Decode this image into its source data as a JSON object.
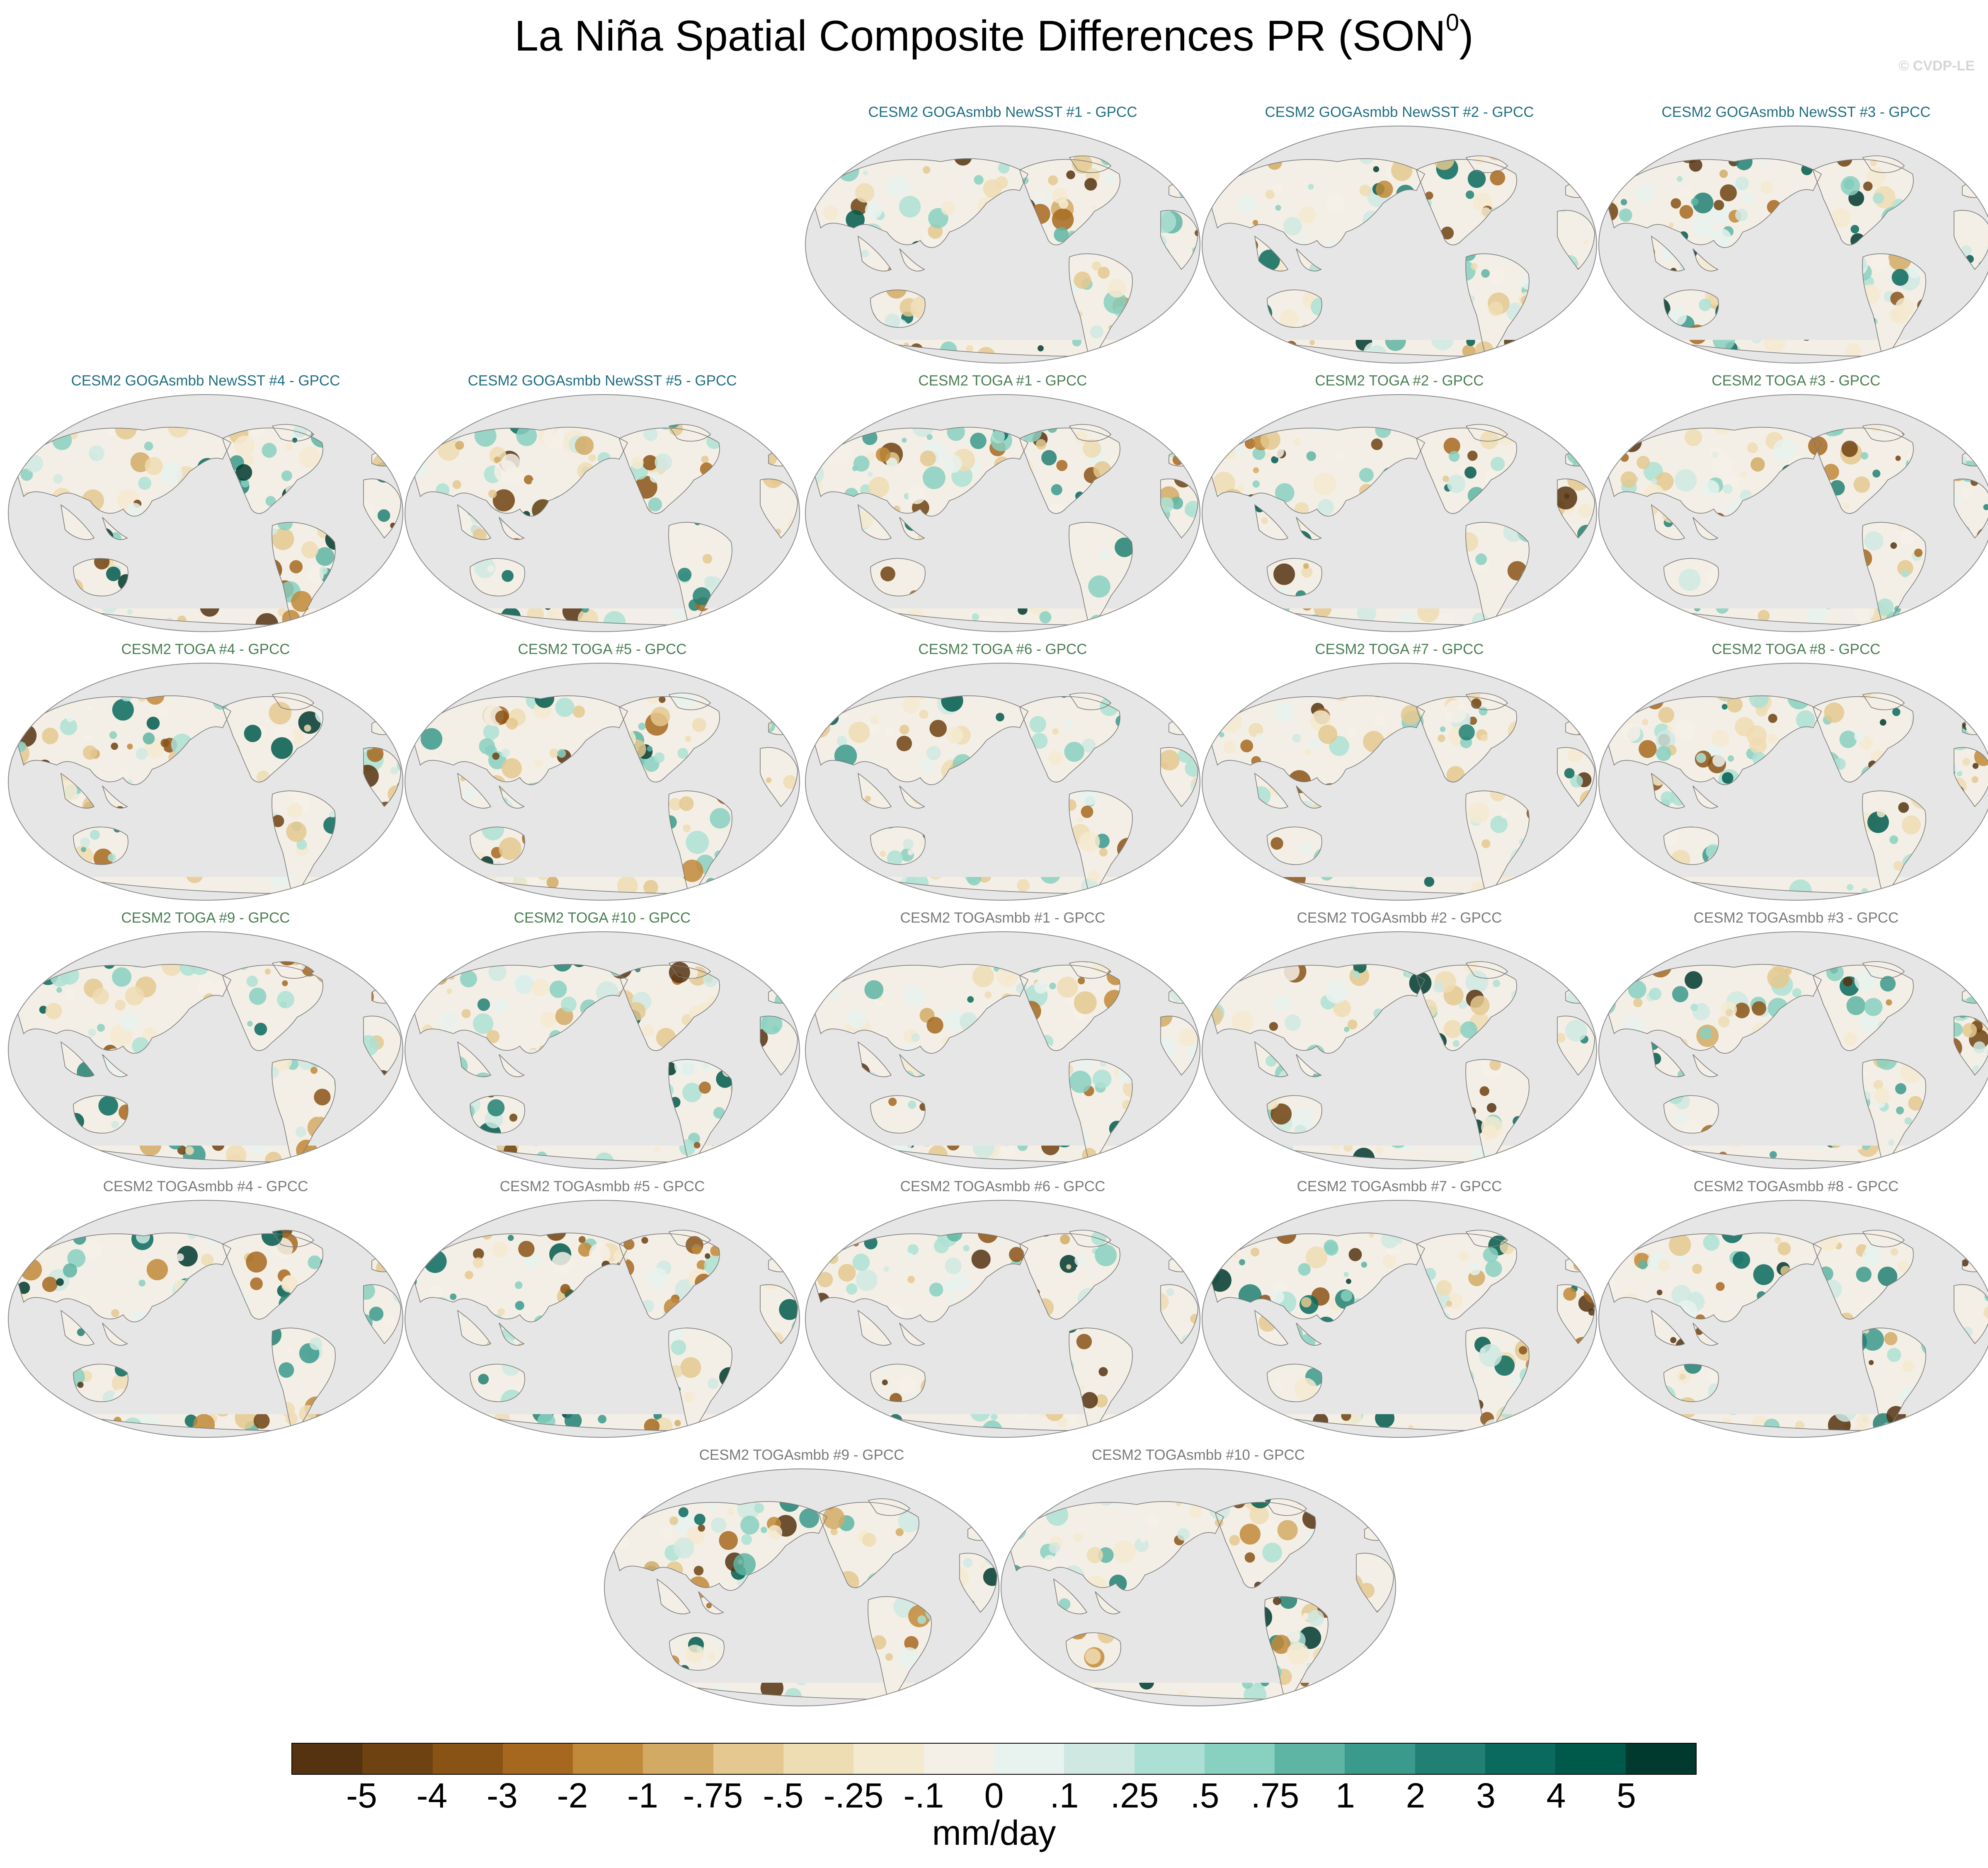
{
  "figure": {
    "title_main": "La Niña Spatial Composite Differences PR (SON",
    "title_sup": "0",
    "title_close": ")",
    "credit": "© CVDP-LE"
  },
  "groups": {
    "goga": {
      "color": "#1f6e82"
    },
    "toga": {
      "color": "#4a7f52"
    },
    "togasmbb": {
      "color": "#7a7a7a"
    }
  },
  "panels": [
    {
      "label": "CESM2 GOGAsmbb NewSST #1 - GPCC",
      "group": "goga"
    },
    {
      "label": "CESM2 GOGAsmbb NewSST #2 - GPCC",
      "group": "goga"
    },
    {
      "label": "CESM2 GOGAsmbb NewSST #3 - GPCC",
      "group": "goga"
    },
    {
      "label": "CESM2 GOGAsmbb NewSST #4 - GPCC",
      "group": "goga"
    },
    {
      "label": "CESM2 GOGAsmbb NewSST #5 - GPCC",
      "group": "goga"
    },
    {
      "label": "CESM2 TOGA #1 - GPCC",
      "group": "toga"
    },
    {
      "label": "CESM2 TOGA #2 - GPCC",
      "group": "toga"
    },
    {
      "label": "CESM2 TOGA #3 - GPCC",
      "group": "toga"
    },
    {
      "label": "CESM2 TOGA #4 - GPCC",
      "group": "toga"
    },
    {
      "label": "CESM2 TOGA #5 - GPCC",
      "group": "toga"
    },
    {
      "label": "CESM2 TOGA #6 - GPCC",
      "group": "toga"
    },
    {
      "label": "CESM2 TOGA #7 - GPCC",
      "group": "toga"
    },
    {
      "label": "CESM2 TOGA #8 - GPCC",
      "group": "toga"
    },
    {
      "label": "CESM2 TOGA #9 - GPCC",
      "group": "toga"
    },
    {
      "label": "CESM2 TOGA #10 - GPCC",
      "group": "toga"
    },
    {
      "label": "CESM2 TOGAsmbb #1 - GPCC",
      "group": "togasmbb"
    },
    {
      "label": "CESM2 TOGAsmbb #2 - GPCC",
      "group": "togasmbb"
    },
    {
      "label": "CESM2 TOGAsmbb #3 - GPCC",
      "group": "togasmbb"
    },
    {
      "label": "CESM2 TOGAsmbb #4 - GPCC",
      "group": "togasmbb"
    },
    {
      "label": "CESM2 TOGAsmbb #5 - GPCC",
      "group": "togasmbb"
    },
    {
      "label": "CESM2 TOGAsmbb #6 - GPCC",
      "group": "togasmbb"
    },
    {
      "label": "CESM2 TOGAsmbb #7 - GPCC",
      "group": "togasmbb"
    },
    {
      "label": "CESM2 TOGAsmbb #8 - GPCC",
      "group": "togasmbb"
    },
    {
      "label": "CESM2 TOGAsmbb #9 - GPCC",
      "group": "togasmbb"
    },
    {
      "label": "CESM2 TOGAsmbb #10 - GPCC",
      "group": "togasmbb"
    }
  ],
  "map_colors": {
    "ocean": "#e6e6e6",
    "outline": "#8c8c8c",
    "coast": "#7a7a7a",
    "land_base": "#f4efe6"
  },
  "colorbar": {
    "colors": [
      "#553311",
      "#6e4311",
      "#8a5316",
      "#a6681f",
      "#c18a3a",
      "#d2aa64",
      "#e4c88f",
      "#eedcb3",
      "#f4ead0",
      "#f4f0e8",
      "#e8f2ef",
      "#cfe9e2",
      "#ade0d4",
      "#88d0bf",
      "#5eb5a3",
      "#3a9a8c",
      "#218073",
      "#096a5d",
      "#005a4c",
      "#00392e"
    ],
    "ticks": [
      "-5",
      "-4",
      "-3",
      "-2",
      "-1",
      "-.75",
      "-.5",
      "-.25",
      "-.1",
      "0",
      ".1",
      ".25",
      ".5",
      ".75",
      "1",
      "2",
      "3",
      "4",
      "5"
    ],
    "units": "mm/day"
  }
}
